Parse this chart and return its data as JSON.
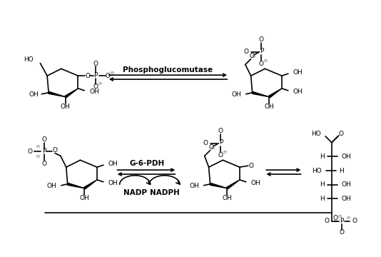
{
  "background_color": "#ffffff",
  "enzyme1": "Phosphoglucomutase",
  "enzyme2": "G-6-PDH",
  "coenzyme1": "NADP",
  "coenzyme2": "NADPH",
  "figsize": [
    5.34,
    3.6
  ],
  "dpi": 100
}
